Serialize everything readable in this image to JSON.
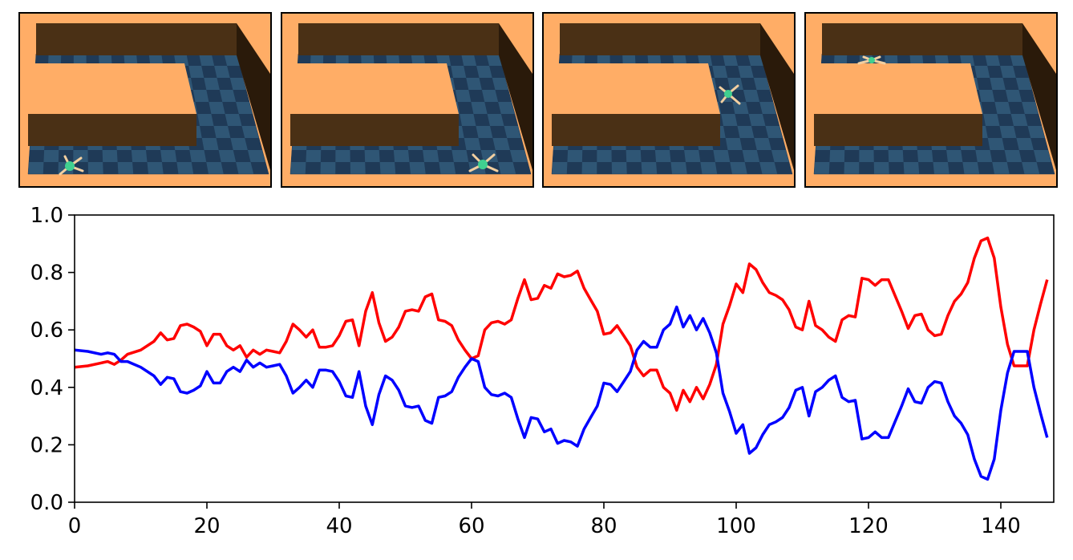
{
  "colors": {
    "arena_floor": "#ffad66",
    "wall_front": "#4a3015",
    "wall_top": "#ffad66",
    "grid_dark": "#1f3a57",
    "grid_light": "#2f5675",
    "ant_body": "#40d090",
    "ant_legs": "#f2cfa0",
    "series_red": "#ff0000",
    "series_blue": "#0000ff"
  },
  "panels": [
    {
      "ant_position": "bottom-left"
    },
    {
      "ant_position": "bottom-right"
    },
    {
      "ant_position": "corner"
    },
    {
      "ant_position": "top-left"
    }
  ],
  "chart_data": {
    "type": "line",
    "title": "",
    "xlabel": "",
    "ylabel": "",
    "xlim": [
      0,
      148
    ],
    "ylim": [
      0,
      1
    ],
    "xticks": [
      "0",
      "20",
      "40",
      "60",
      "80",
      "100",
      "120",
      "140"
    ],
    "yticks": [
      "0.0",
      "0.2",
      "0.4",
      "0.6",
      "0.8",
      "1.0"
    ],
    "grid": false,
    "x": [
      0,
      2,
      4,
      5,
      6,
      7,
      8,
      10,
      12,
      13,
      14,
      15,
      16,
      17,
      18,
      19,
      20,
      21,
      22,
      23,
      24,
      25,
      26,
      27,
      28,
      29,
      30,
      31,
      32,
      33,
      34,
      35,
      36,
      37,
      38,
      39,
      40,
      41,
      42,
      43,
      44,
      45,
      46,
      47,
      48,
      49,
      50,
      51,
      52,
      53,
      54,
      55,
      56,
      57,
      58,
      59,
      60,
      61,
      62,
      63,
      64,
      65,
      66,
      67,
      68,
      69,
      70,
      71,
      72,
      73,
      74,
      75,
      76,
      77,
      78,
      79,
      80,
      81,
      82,
      83,
      84,
      85,
      86,
      87,
      88,
      89,
      90,
      91,
      92,
      93,
      94,
      95,
      96,
      97,
      98,
      99,
      100,
      101,
      102,
      103,
      104,
      105,
      106,
      107,
      108,
      109,
      110,
      111,
      112,
      113,
      114,
      115,
      116,
      117,
      118,
      119,
      120,
      121,
      122,
      123,
      124,
      125,
      126,
      127,
      128,
      129,
      130,
      131,
      132,
      133,
      134,
      135,
      136,
      137,
      138,
      139,
      140,
      141,
      142,
      143,
      144,
      145,
      146,
      147
    ],
    "series": [
      {
        "color": "#ff0000",
        "values": [
          0.47,
          0.475,
          0.485,
          0.49,
          0.48,
          0.495,
          0.515,
          0.53,
          0.56,
          0.59,
          0.565,
          0.57,
          0.615,
          0.62,
          0.61,
          0.595,
          0.545,
          0.585,
          0.585,
          0.545,
          0.53,
          0.545,
          0.505,
          0.53,
          0.515,
          0.53,
          0.525,
          0.52,
          0.56,
          0.62,
          0.6,
          0.575,
          0.6,
          0.54,
          0.54,
          0.545,
          0.58,
          0.63,
          0.635,
          0.545,
          0.665,
          0.73,
          0.625,
          0.56,
          0.575,
          0.61,
          0.665,
          0.67,
          0.665,
          0.715,
          0.725,
          0.635,
          0.63,
          0.615,
          0.565,
          0.53,
          0.5,
          0.51,
          0.6,
          0.625,
          0.63,
          0.62,
          0.635,
          0.71,
          0.775,
          0.705,
          0.71,
          0.755,
          0.745,
          0.795,
          0.785,
          0.79,
          0.805,
          0.745,
          0.705,
          0.665,
          0.585,
          0.59,
          0.615,
          0.58,
          0.545,
          0.47,
          0.44,
          0.46,
          0.46,
          0.4,
          0.38,
          0.32,
          0.39,
          0.35,
          0.4,
          0.36,
          0.41,
          0.48,
          0.62,
          0.685,
          0.76,
          0.73,
          0.83,
          0.81,
          0.765,
          0.73,
          0.72,
          0.705,
          0.67,
          0.61,
          0.6,
          0.7,
          0.615,
          0.6,
          0.575,
          0.56,
          0.635,
          0.65,
          0.645,
          0.78,
          0.775,
          0.755,
          0.775,
          0.775,
          0.72,
          0.665,
          0.605,
          0.65,
          0.655,
          0.6,
          0.58,
          0.585,
          0.65,
          0.7,
          0.725,
          0.765,
          0.85,
          0.91,
          0.92,
          0.85,
          0.68,
          0.55,
          0.475,
          0.475,
          0.475,
          0.6,
          0.69,
          0.775
        ]
      },
      {
        "color": "#0000ff",
        "values": [
          0.53,
          0.525,
          0.515,
          0.52,
          0.515,
          0.49,
          0.49,
          0.47,
          0.44,
          0.41,
          0.435,
          0.43,
          0.385,
          0.38,
          0.39,
          0.405,
          0.455,
          0.415,
          0.415,
          0.455,
          0.47,
          0.455,
          0.495,
          0.47,
          0.485,
          0.47,
          0.475,
          0.48,
          0.44,
          0.38,
          0.4,
          0.425,
          0.4,
          0.46,
          0.46,
          0.455,
          0.42,
          0.37,
          0.365,
          0.455,
          0.335,
          0.27,
          0.375,
          0.44,
          0.425,
          0.39,
          0.335,
          0.33,
          0.335,
          0.285,
          0.275,
          0.365,
          0.37,
          0.385,
          0.435,
          0.47,
          0.5,
          0.49,
          0.4,
          0.375,
          0.37,
          0.38,
          0.365,
          0.29,
          0.225,
          0.295,
          0.29,
          0.245,
          0.255,
          0.205,
          0.215,
          0.21,
          0.195,
          0.255,
          0.295,
          0.335,
          0.415,
          0.41,
          0.385,
          0.42,
          0.455,
          0.53,
          0.56,
          0.54,
          0.54,
          0.6,
          0.62,
          0.68,
          0.61,
          0.65,
          0.6,
          0.64,
          0.59,
          0.52,
          0.38,
          0.315,
          0.24,
          0.27,
          0.17,
          0.19,
          0.235,
          0.27,
          0.28,
          0.295,
          0.33,
          0.39,
          0.4,
          0.3,
          0.385,
          0.4,
          0.425,
          0.44,
          0.365,
          0.35,
          0.355,
          0.22,
          0.225,
          0.245,
          0.225,
          0.225,
          0.28,
          0.335,
          0.395,
          0.35,
          0.345,
          0.4,
          0.42,
          0.415,
          0.35,
          0.3,
          0.275,
          0.235,
          0.15,
          0.09,
          0.08,
          0.15,
          0.32,
          0.45,
          0.525,
          0.525,
          0.525,
          0.4,
          0.31,
          0.225
        ]
      }
    ]
  }
}
